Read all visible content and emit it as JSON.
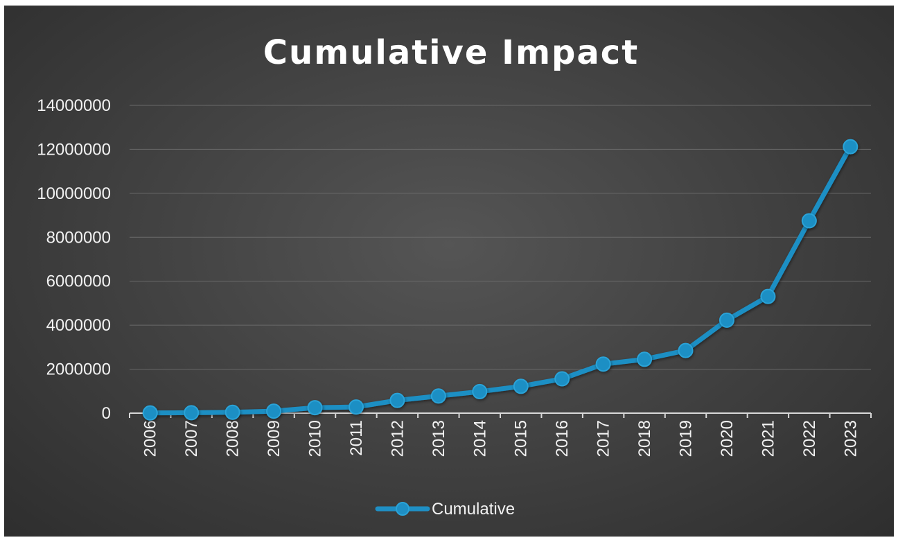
{
  "chart_data": {
    "type": "line",
    "title": "Cumulative Impact",
    "xlabel": "",
    "ylabel": "",
    "categories": [
      "2006",
      "2007",
      "2008",
      "2009",
      "2010",
      "2011",
      "2012",
      "2013",
      "2014",
      "2015",
      "2016",
      "2017",
      "2018",
      "2019",
      "2020",
      "2021",
      "2022",
      "2023"
    ],
    "series": [
      {
        "name": "Cumulative",
        "color": "#1f8fc4",
        "values": [
          10000,
          20000,
          40000,
          90000,
          250000,
          280000,
          580000,
          780000,
          980000,
          1220000,
          1560000,
          2230000,
          2450000,
          2850000,
          4230000,
          5310000,
          8750000,
          12120000
        ]
      }
    ],
    "ylim": [
      0,
      14000000
    ],
    "yticks": [
      "0",
      "2000000",
      "4000000",
      "6000000",
      "8000000",
      "10000000",
      "12000000",
      "14000000"
    ],
    "grid": true,
    "legend_position": "bottom",
    "background": "#444444",
    "text_color": "#ffffff"
  }
}
